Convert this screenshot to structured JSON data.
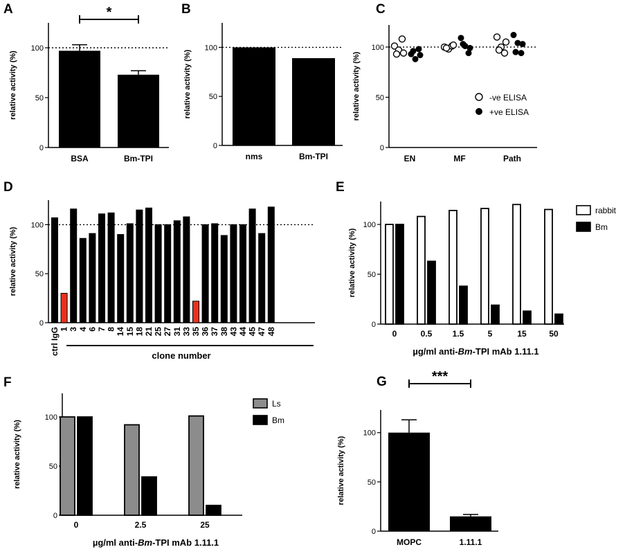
{
  "chart_data": [
    {
      "panel": "A",
      "type": "bar",
      "categories": [
        "BSA",
        "Bm-TPI"
      ],
      "values": [
        97,
        73
      ],
      "errors": [
        6,
        4
      ],
      "ylabel": "relative activity (%)",
      "yticks": [
        0,
        50,
        100
      ],
      "ylim": [
        0,
        125
      ],
      "reference_line": 100,
      "significance": "*"
    },
    {
      "panel": "B",
      "type": "bar",
      "categories": [
        "nms",
        "Bm-TPI"
      ],
      "values": [
        100,
        89
      ],
      "ylabel": "relative activity (%)",
      "yticks": [
        0,
        50,
        100
      ],
      "ylim": [
        0,
        125
      ],
      "reference_line": 100
    },
    {
      "panel": "C",
      "type": "scatter",
      "categories": [
        "EN",
        "MF",
        "Path"
      ],
      "series": [
        {
          "name": "-ve ELISA",
          "marker": "open",
          "values": [
            [
              101,
              97,
              108,
              93,
              94
            ],
            [
              100,
              98,
              101,
              99,
              102
            ],
            [
              110,
              100,
              94,
              97,
              105
            ]
          ]
        },
        {
          "name": "+ve ELISA",
          "marker": "filled",
          "values": [
            [
              93,
              88,
              98,
              96,
              92
            ],
            [
              109,
              101,
              94,
              103,
              99
            ],
            [
              112,
              104,
              94,
              95,
              103
            ]
          ]
        }
      ],
      "ylabel": "relative activity (%)",
      "yticks": [
        0,
        50,
        100
      ],
      "ylim": [
        0,
        122
      ],
      "reference_line": 100,
      "legend": "bottom-right"
    },
    {
      "panel": "D",
      "type": "bar",
      "categories": [
        "ctrl IgG",
        "1",
        "3",
        "4",
        "6",
        "7",
        "8",
        "14",
        "15",
        "18",
        "21",
        "25",
        "27",
        "31",
        "33",
        "35",
        "36",
        "37",
        "38",
        "43",
        "44",
        "45",
        "47",
        "48"
      ],
      "values": [
        107,
        30,
        116,
        86,
        91,
        111,
        112,
        90,
        101,
        115,
        117,
        100,
        100,
        104,
        108,
        22,
        100,
        101,
        89,
        100,
        100,
        116,
        91,
        118
      ],
      "highlight": [
        "1",
        "35"
      ],
      "highlight_color": "#e8321e",
      "ylabel": "relative activity (%)",
      "xlabel": "clone number",
      "yticks": [
        0,
        50,
        100
      ],
      "ylim": [
        0,
        125
      ],
      "reference_line": 100
    },
    {
      "panel": "E",
      "type": "bar",
      "categories": [
        "0",
        "0.5",
        "1.5",
        "5",
        "15",
        "50"
      ],
      "series": [
        {
          "name": "rabbit",
          "values": [
            100,
            108,
            114,
            116,
            120,
            115
          ]
        },
        {
          "name": "Bm",
          "values": [
            100,
            63,
            38,
            19,
            13,
            10
          ]
        }
      ],
      "ylabel": "relative activity (%)",
      "xlabel": [
        "µg/ml anti-",
        "Bm",
        "-TPI mAb 1.11.1"
      ],
      "yticks": [
        0,
        50,
        100
      ],
      "ylim": [
        0,
        123
      ],
      "legend": "top-right"
    },
    {
      "panel": "F",
      "type": "bar",
      "categories": [
        "0",
        "2.5",
        "25"
      ],
      "series": [
        {
          "name": "Ls",
          "values": [
            100,
            92,
            101
          ]
        },
        {
          "name": "Bm",
          "values": [
            100,
            39,
            10
          ]
        }
      ],
      "ylabel": "relative activity (%)",
      "xlabel": [
        "µg/ml anti-",
        "Bm",
        "-TPI mAb 1.11.1"
      ],
      "yticks": [
        0,
        50,
        100
      ],
      "ylim": [
        0,
        124
      ],
      "legend": "top-right"
    },
    {
      "panel": "G",
      "type": "bar",
      "categories": [
        "MOPC",
        "1.11.1"
      ],
      "values": [
        100,
        15
      ],
      "errors": [
        13,
        2
      ],
      "ylabel": "relative activity (%)",
      "yticks": [
        0,
        50,
        100
      ],
      "ylim": [
        0,
        123
      ],
      "significance": "***"
    }
  ],
  "colors": {
    "bar": "#000000",
    "highlight": "#e8321e",
    "ls_bar": "#8c8c8c",
    "open_bar": "#ffffff"
  }
}
